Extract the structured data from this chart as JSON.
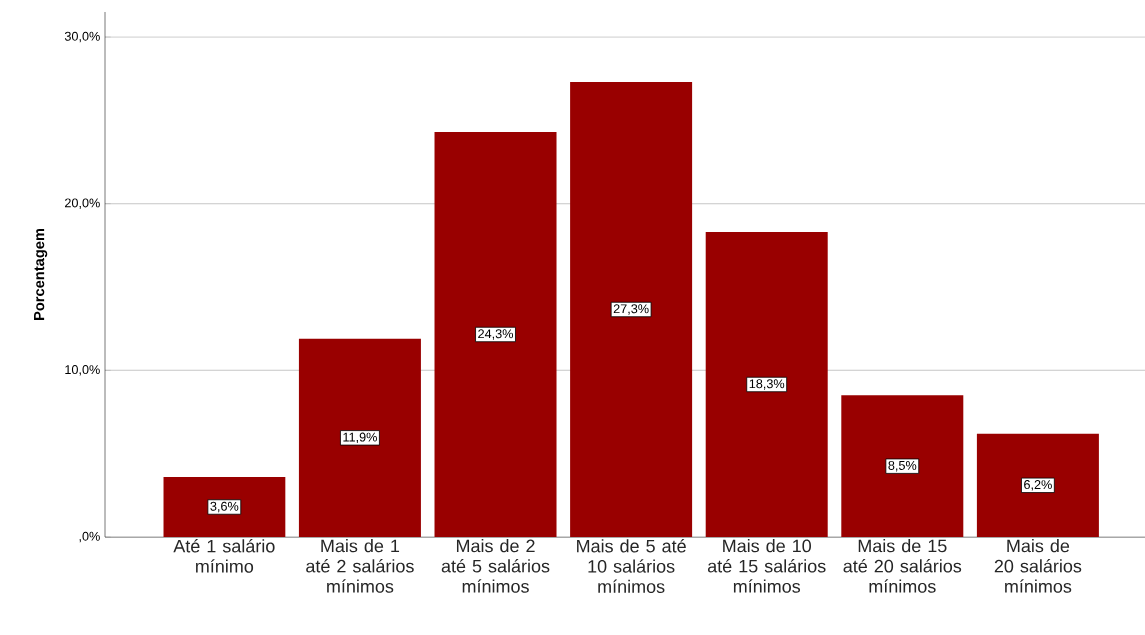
{
  "chart_data": {
    "type": "bar",
    "ylabel": "Porcentagem",
    "categories": [
      "Até 1 salário mínimo",
      "Mais de 1 até 2 salários mínimos",
      "Mais de 2 até 5 salários mínimos",
      "Mais de 5 até 10 salários mínimos",
      "Mais de 10 até 15 salários mínimos",
      "Mais de 15 até 20 salários mínimos",
      "Mais de 20 salários mínimos"
    ],
    "values": [
      3.6,
      11.9,
      24.3,
      27.3,
      18.3,
      8.5,
      6.2
    ],
    "value_labels": [
      "3,6%",
      "11,9%",
      "24,3%",
      "27,3%",
      "18,3%",
      "8,5%",
      "6,2%"
    ],
    "color": "#990000",
    "ylim": [
      0,
      31.5
    ],
    "yticks": [
      {
        "value": 0,
        "label": ",0%"
      },
      {
        "value": 10,
        "label": "10,0%"
      },
      {
        "value": 20,
        "label": "20,0%"
      },
      {
        "value": 30,
        "label": "30,0%"
      }
    ],
    "grid": "y"
  }
}
